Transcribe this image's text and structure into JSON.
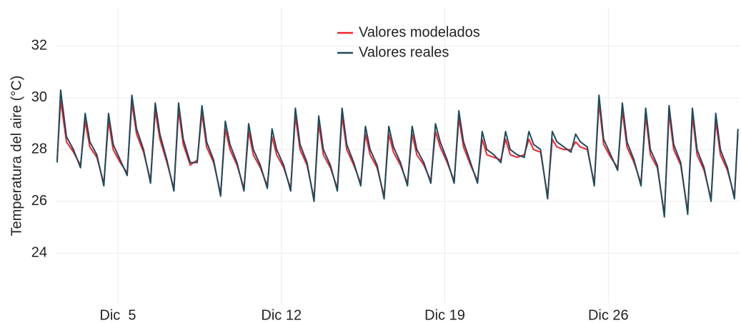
{
  "chart_data": {
    "type": "line",
    "y_label": "Temperatura del aire (°C)",
    "xlim": [
      2.34,
      31.62
    ],
    "ylim": [
      22.05,
      33.5
    ],
    "xticks": [
      {
        "value": 5,
        "label": "Dic  5"
      },
      {
        "value": 12,
        "label": "Dic 12"
      },
      {
        "value": 19,
        "label": "Dic 19"
      },
      {
        "value": 26,
        "label": "Dic 26"
      }
    ],
    "yticks": [
      24,
      26,
      28,
      30,
      32
    ],
    "grid": true,
    "legend": "top-center",
    "x": [
      2.4,
      2.55,
      2.8,
      3.1,
      3.4,
      3.6,
      3.8,
      4.1,
      4.4,
      4.6,
      4.8,
      5.1,
      5.4,
      5.6,
      5.8,
      6.1,
      6.4,
      6.6,
      6.8,
      7.1,
      7.4,
      7.6,
      7.8,
      8.1,
      8.4,
      8.6,
      8.8,
      9.1,
      9.4,
      9.6,
      9.8,
      10.1,
      10.4,
      10.6,
      10.8,
      11.1,
      11.4,
      11.6,
      11.8,
      12.1,
      12.4,
      12.6,
      12.8,
      13.1,
      13.4,
      13.6,
      13.8,
      14.1,
      14.4,
      14.6,
      14.8,
      15.1,
      15.4,
      15.6,
      15.8,
      16.1,
      16.4,
      16.6,
      16.8,
      17.1,
      17.4,
      17.6,
      17.8,
      18.1,
      18.4,
      18.6,
      18.8,
      19.1,
      19.4,
      19.6,
      19.8,
      20.1,
      20.4,
      20.6,
      20.8,
      21.1,
      21.4,
      21.6,
      21.8,
      22.1,
      22.4,
      22.6,
      22.8,
      23.1,
      23.4,
      23.6,
      23.8,
      24.1,
      24.4,
      24.6,
      24.8,
      25.1,
      25.4,
      25.6,
      25.8,
      26.1,
      26.4,
      26.6,
      26.8,
      27.1,
      27.4,
      27.6,
      27.8,
      28.1,
      28.4,
      28.6,
      28.8,
      29.1,
      29.4,
      29.6,
      29.8,
      30.1,
      30.4,
      30.6,
      30.8,
      31.1,
      31.4,
      31.55
    ],
    "series": [
      {
        "name": "Valores modelados",
        "color": "#f5222d",
        "values": [
          27.6,
          29.9,
          28.3,
          27.9,
          27.4,
          29.1,
          28.1,
          27.7,
          26.7,
          29.1,
          28.0,
          27.5,
          27.1,
          29.8,
          28.6,
          27.9,
          26.8,
          29.5,
          28.4,
          27.5,
          26.5,
          29.5,
          28.2,
          27.4,
          27.6,
          29.4,
          28.1,
          27.5,
          26.3,
          28.8,
          28.0,
          27.4,
          26.5,
          28.7,
          27.8,
          27.3,
          26.6,
          28.5,
          27.8,
          27.3,
          26.5,
          29.3,
          28.0,
          27.4,
          26.1,
          29.0,
          27.8,
          27.3,
          26.5,
          29.3,
          28.0,
          27.4,
          26.7,
          28.6,
          27.8,
          27.3,
          26.2,
          28.6,
          27.9,
          27.4,
          26.7,
          28.6,
          27.8,
          27.4,
          26.8,
          28.7,
          28.1,
          27.5,
          26.8,
          29.2,
          28.1,
          27.4,
          26.8,
          28.4,
          27.8,
          27.7,
          27.6,
          28.4,
          27.8,
          27.7,
          27.8,
          28.4,
          28.0,
          27.9,
          26.2,
          28.4,
          28.1,
          28.0,
          28.0,
          28.3,
          28.1,
          28.0,
          26.7,
          29.8,
          28.2,
          27.7,
          27.3,
          29.5,
          28.1,
          27.5,
          26.7,
          29.3,
          27.8,
          27.3,
          25.5,
          29.4,
          28.0,
          27.4,
          25.6,
          29.3,
          27.8,
          27.2,
          26.1,
          29.1,
          27.8,
          27.2,
          26.2,
          28.6
        ]
      },
      {
        "name": "Valores reales",
        "color": "#1c4b5c",
        "values": [
          27.5,
          30.3,
          28.5,
          28.0,
          27.3,
          29.4,
          28.3,
          27.8,
          26.6,
          29.4,
          28.2,
          27.6,
          27.0,
          30.1,
          28.8,
          28.0,
          26.7,
          29.8,
          28.6,
          27.6,
          26.4,
          29.8,
          28.4,
          27.5,
          27.5,
          29.7,
          28.3,
          27.6,
          26.2,
          29.1,
          28.2,
          27.5,
          26.4,
          29.0,
          28.0,
          27.4,
          26.5,
          28.8,
          28.0,
          27.4,
          26.4,
          29.6,
          28.2,
          27.5,
          26.0,
          29.3,
          28.0,
          27.4,
          26.4,
          29.6,
          28.2,
          27.5,
          26.6,
          28.9,
          28.0,
          27.4,
          26.1,
          28.9,
          28.1,
          27.5,
          26.6,
          28.9,
          28.0,
          27.5,
          26.7,
          29.0,
          28.3,
          27.6,
          26.7,
          29.5,
          28.3,
          27.5,
          26.7,
          28.7,
          28.0,
          27.8,
          27.5,
          28.7,
          28.0,
          27.8,
          27.7,
          28.7,
          28.2,
          28.0,
          26.1,
          28.7,
          28.3,
          28.1,
          27.9,
          28.6,
          28.3,
          28.1,
          26.6,
          30.1,
          28.4,
          27.8,
          27.2,
          29.8,
          28.3,
          27.6,
          26.6,
          29.6,
          28.0,
          27.4,
          25.4,
          29.7,
          28.2,
          27.5,
          25.5,
          29.6,
          28.0,
          27.3,
          26.0,
          29.4,
          28.0,
          27.3,
          26.1,
          28.8
        ]
      }
    ]
  }
}
